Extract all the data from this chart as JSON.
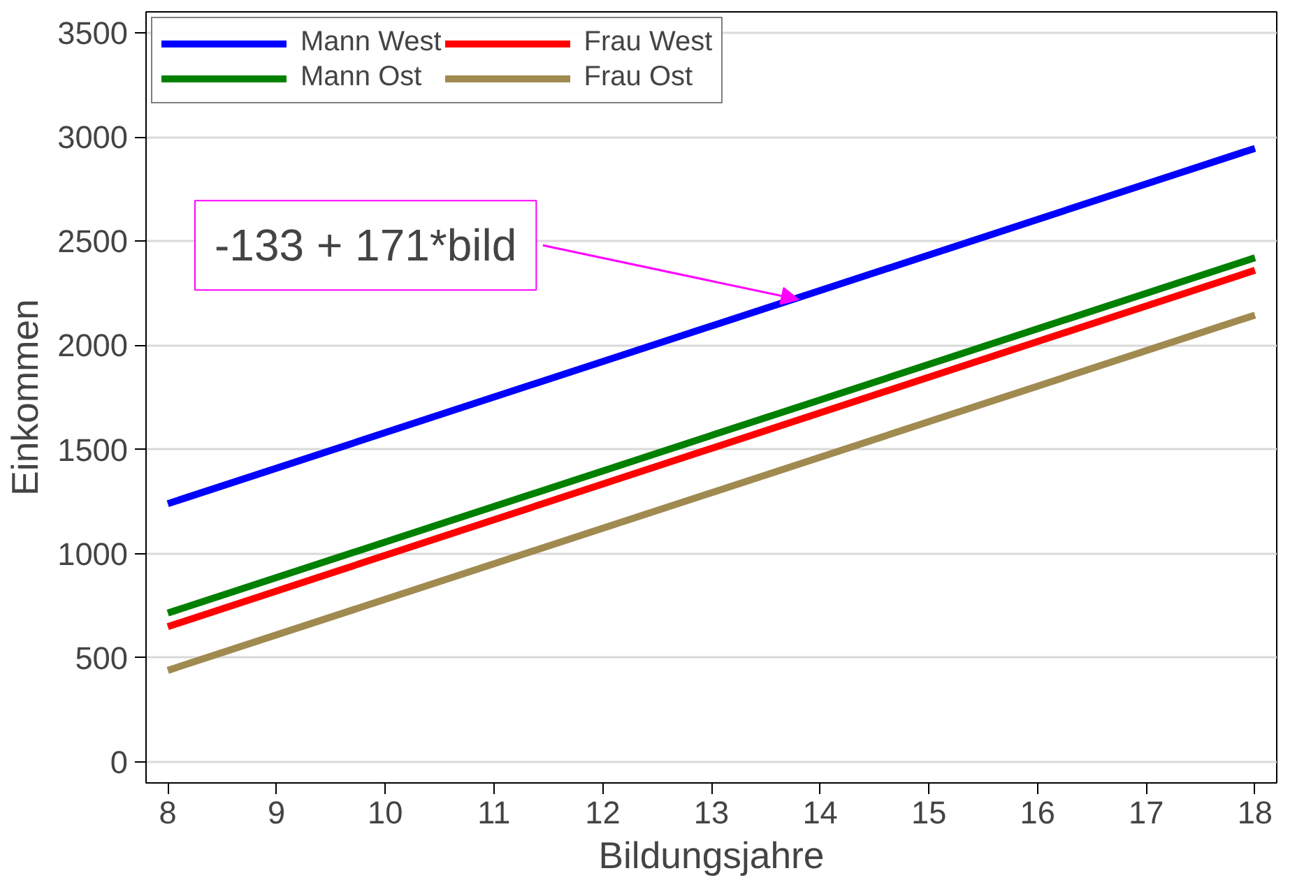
{
  "chart_data": {
    "type": "line",
    "xlabel": "Bildungsjahre",
    "ylabel": "Einkommen",
    "x": [
      8,
      18
    ],
    "series": [
      {
        "name": "Mann West",
        "color": "#0000ff",
        "values": [
          1240,
          2945
        ]
      },
      {
        "name": "Mann Ost",
        "color": "#008000",
        "values": [
          715,
          2420
        ]
      },
      {
        "name": "Frau West",
        "color": "#ff0000",
        "values": [
          650,
          2360
        ]
      },
      {
        "name": "Frau Ost",
        "color": "#a08a50",
        "values": [
          440,
          2145
        ]
      }
    ],
    "xlim": [
      7.8,
      18.2
    ],
    "ylim": [
      -100,
      3600
    ],
    "xticks": [
      8,
      9,
      10,
      11,
      12,
      13,
      14,
      15,
      16,
      17,
      18
    ],
    "yticks": [
      0,
      500,
      1000,
      1500,
      2000,
      2500,
      3000,
      3500
    ],
    "annotations": [
      {
        "text": "-133 + 171*bild",
        "x": 13.8,
        "y": 2220
      }
    ],
    "grid": "y",
    "legend": "top left",
    "marker": "none",
    "line_style": "solid"
  }
}
